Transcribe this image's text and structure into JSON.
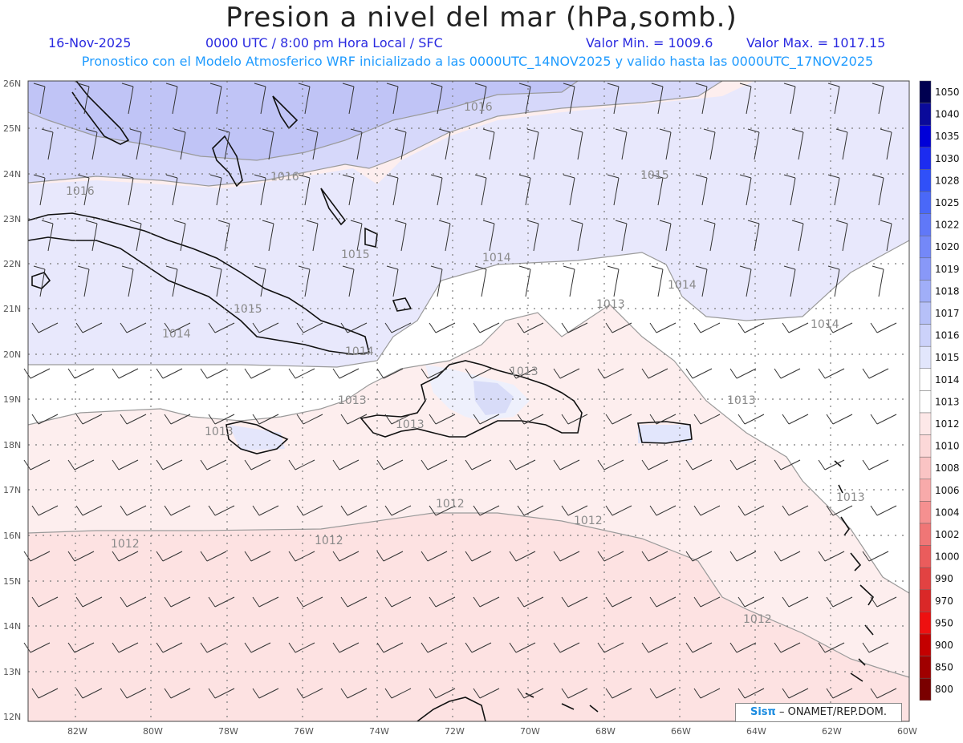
{
  "title": "Presion a nivel del mar (hPa,somb.)",
  "subtitle": {
    "date": "16-Nov-2025",
    "time": "0000 UTC / 8:00 pm Hora Local / SFC",
    "valor_min": "Valor Min. = 1009.6",
    "valor_max": "Valor Max. = 1017.15"
  },
  "model_line": "Pronostico con el Modelo Atmosferico WRF inicializado a las 0000UTC_14NOV2025 y valido hasta las  0000UTC_17NOV2025",
  "lat_labels": [
    "26N",
    "25N",
    "24N",
    "23N",
    "22N",
    "21N",
    "20N",
    "19N",
    "18N",
    "17N",
    "16N",
    "15N",
    "14N",
    "13N",
    "12N"
  ],
  "lon_labels": [
    "82W",
    "80W",
    "78W",
    "76W",
    "74W",
    "72W",
    "70W",
    "68W",
    "66W",
    "64W",
    "62W",
    "60W"
  ],
  "contour_labels": [
    "1016",
    "1016",
    "1016",
    "1015",
    "1015",
    "1015",
    "1014",
    "1014",
    "1014",
    "1014",
    "1014",
    "1013",
    "1013",
    "1013",
    "1013",
    "1013",
    "1013",
    "1013",
    "1012",
    "1012",
    "1012",
    "1012",
    "1012"
  ],
  "colorbar": {
    "levels": [
      "1050",
      "1040",
      "1035",
      "1030",
      "1028",
      "1025",
      "1022",
      "1020",
      "1019",
      "1018",
      "1017",
      "1016",
      "1015",
      "1014",
      "1013",
      "1012",
      "1010",
      "1008",
      "1006",
      "1004",
      "1002",
      "1000",
      "990",
      "970",
      "950",
      "900",
      "850",
      "800"
    ],
    "colors": [
      "#000050",
      "#0a0a9a",
      "#0000d8",
      "#1c2cf0",
      "#3050f8",
      "#4a68f8",
      "#6078f8",
      "#7488f8",
      "#8898f8",
      "#a0aef8",
      "#b6c0f8",
      "#ccd2fa",
      "#e2e6fc",
      "#ffffff",
      "#ffffff",
      "#fde8e8",
      "#fcd8d8",
      "#fac4c4",
      "#f8aaaa",
      "#f59090",
      "#f07676",
      "#ea5c5c",
      "#e24242",
      "#da2828",
      "#ee1010",
      "#c40000",
      "#a00000",
      "#7a0000"
    ]
  },
  "credit": {
    "logo": "Sisπ",
    "text": "– ONAMET/REP.DOM."
  }
}
